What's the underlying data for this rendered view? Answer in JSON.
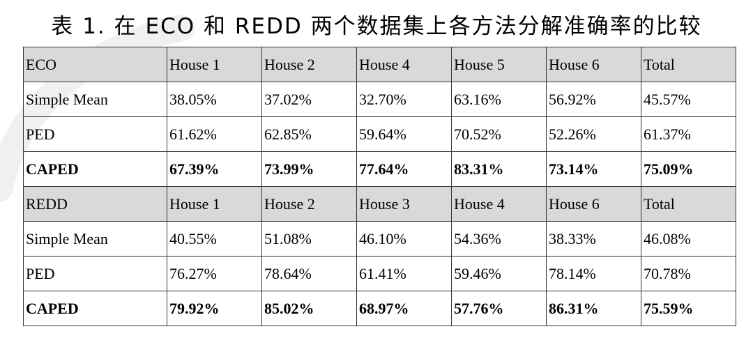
{
  "title": "表 1. 在 ECO 和 REDD 两个数据集上各方法分解准确率的比较",
  "table": {
    "rows": [
      {
        "kind": "hdr",
        "cells": [
          "ECO",
          "House 1",
          "House 2",
          "House 4",
          "House 5",
          "House 6",
          "Total"
        ]
      },
      {
        "kind": "norm",
        "cells": [
          "Simple Mean",
          "38.05%",
          "37.02%",
          "32.70%",
          "63.16%",
          "56.92%",
          "45.57%"
        ]
      },
      {
        "kind": "norm",
        "cells": [
          "PED",
          "61.62%",
          "62.85%",
          "59.64%",
          "70.52%",
          "52.26%",
          "61.37%"
        ]
      },
      {
        "kind": "bold",
        "cells": [
          "CAPED",
          "67.39%",
          "73.99%",
          "77.64%",
          "83.31%",
          "73.14%",
          "75.09%"
        ]
      },
      {
        "kind": "hdr",
        "cells": [
          "REDD",
          "House 1",
          "House 2",
          "House 3",
          "House 4",
          "House 6",
          "Total"
        ]
      },
      {
        "kind": "norm",
        "cells": [
          "Simple Mean",
          "40.55%",
          "51.08%",
          "46.10%",
          "54.36%",
          "38.33%",
          "46.08%"
        ]
      },
      {
        "kind": "norm",
        "cells": [
          "PED",
          "76.27%",
          "78.64%",
          "61.41%",
          "59.46%",
          "78.14%",
          "70.78%"
        ]
      },
      {
        "kind": "bold",
        "cells": [
          "CAPED",
          "79.92%",
          "85.02%",
          "68.97%",
          "57.76%",
          "86.31%",
          "75.59%"
        ]
      }
    ]
  }
}
